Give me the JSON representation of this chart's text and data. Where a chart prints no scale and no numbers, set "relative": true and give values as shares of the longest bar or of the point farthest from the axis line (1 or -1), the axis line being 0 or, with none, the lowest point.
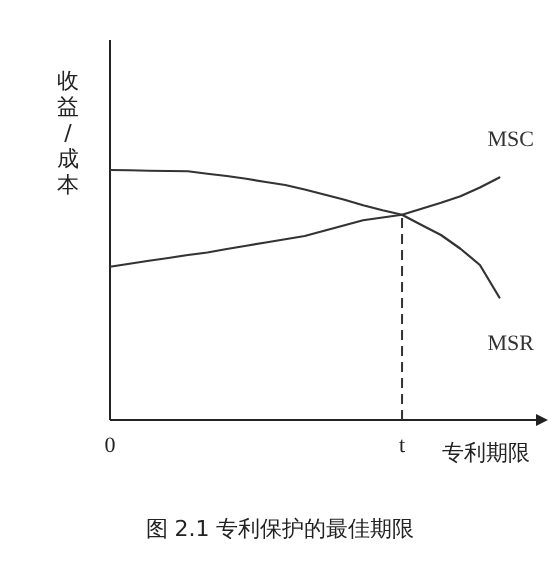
{
  "chart_data": {
    "type": "line",
    "relative": true,
    "title": "图 2.1 专利保护的最佳期限",
    "ylabel": "收益/成本",
    "xlabel": "专利期限",
    "categories": [
      "0",
      null,
      null,
      null,
      null,
      null,
      null,
      null,
      null,
      null,
      null,
      null,
      null,
      null,
      null,
      "t",
      null,
      null,
      null,
      null,
      null
    ],
    "legend": false,
    "grid": false,
    "marker": "none",
    "line_style": "solid",
    "series": [
      {
        "name": "MSC",
        "color": "#333333",
        "values": [
          0.613,
          0.625,
          0.637,
          0.648,
          0.66,
          0.67,
          0.684,
          0.697,
          0.71,
          0.723,
          0.736,
          0.757,
          0.778,
          0.799,
          0.81,
          0.821,
          0.845,
          0.869,
          0.895,
          0.93,
          0.97
        ]
      },
      {
        "name": "MSR",
        "color": "#333333",
        "values": [
          1,
          0.999,
          0.997,
          0.996,
          0.995,
          0.985,
          0.976,
          0.965,
          0.952,
          0.94,
          0.922,
          0.902,
          0.882,
          0.859,
          0.839,
          0.821,
          0.78,
          0.74,
          0.685,
          0.62,
          0.49
        ]
      }
    ],
    "ref_lines": [
      {
        "axis": "x",
        "value": "t",
        "line_style": "dashed",
        "color": "#333333"
      }
    ]
  }
}
